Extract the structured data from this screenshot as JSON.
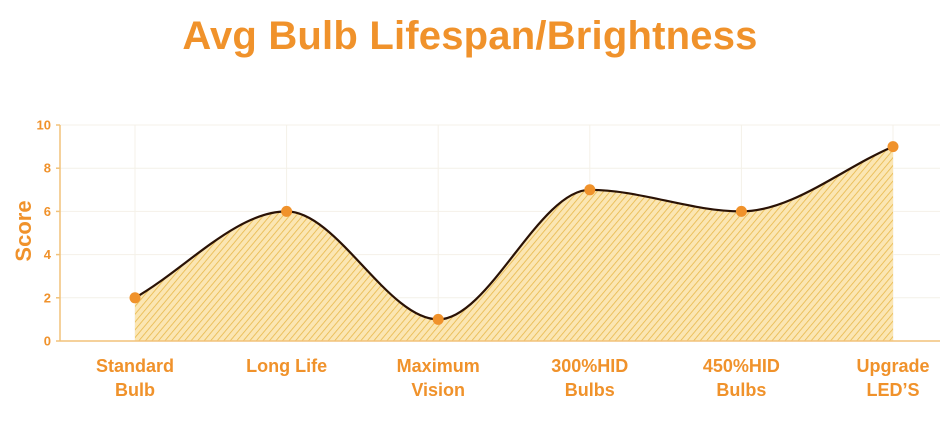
{
  "chart_data": {
    "type": "area",
    "title": "Avg Bulb Lifespan/Brightness",
    "xlabel": "",
    "ylabel": "Score",
    "ylim": [
      0,
      10
    ],
    "yticks": [
      "0",
      "2",
      "4",
      "6",
      "8",
      "10"
    ],
    "categories": [
      [
        "Standard",
        "Bulb"
      ],
      [
        "Long Life"
      ],
      [
        "Maximum",
        "Vision"
      ],
      [
        "300%HID",
        "Bulbs"
      ],
      [
        "450%HID",
        "Bulbs"
      ],
      [
        "Upgrade",
        "LED’S"
      ]
    ],
    "series": [
      {
        "values": [
          2,
          6,
          1,
          7,
          6,
          9
        ]
      }
    ],
    "grid": true,
    "legend": "none"
  },
  "colors": {
    "accent": "#f0922b",
    "line": "#2a1205",
    "fill": "#f2c75c",
    "grid": "#f4f1e8",
    "axis": "#f2c27a"
  }
}
